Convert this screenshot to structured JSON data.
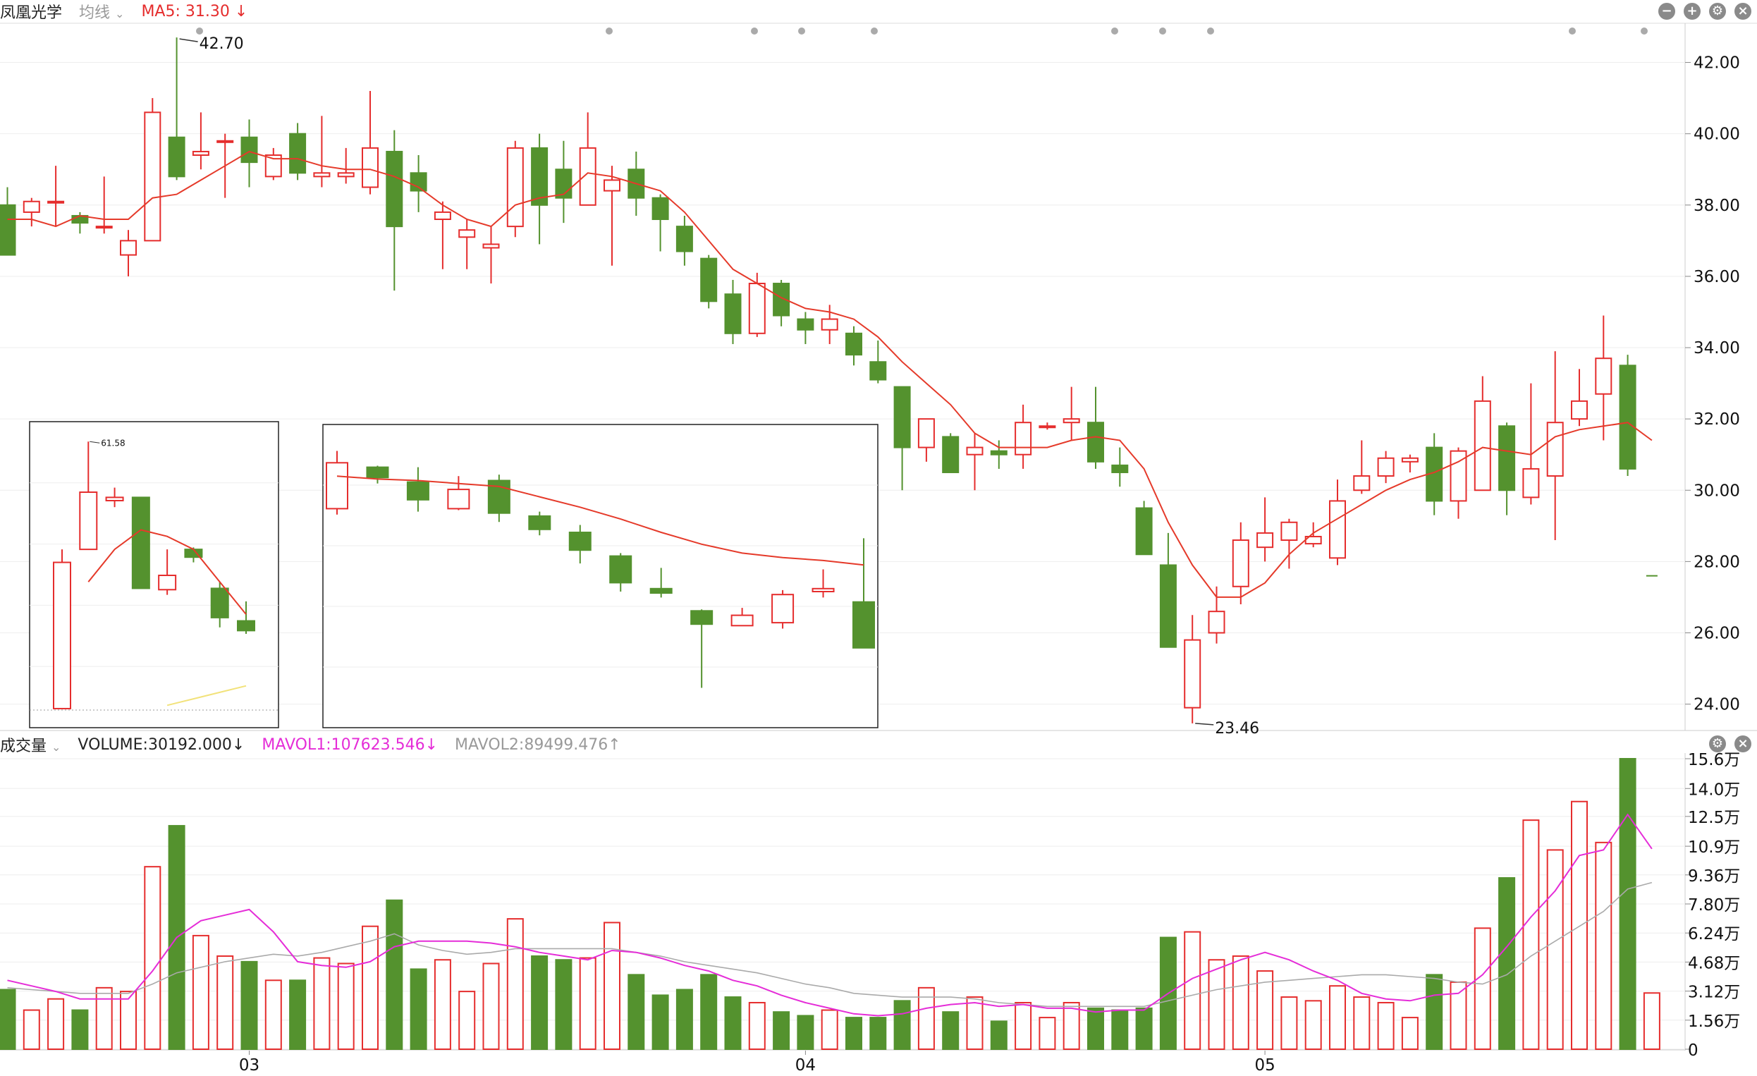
{
  "header": {
    "stock_name": "凤凰光学",
    "indicator": "均线",
    "ma5": "MA5: 31.30 ↓"
  },
  "volume_header": {
    "title": "成交量",
    "volume": "VOLUME:30192.000↓",
    "mavol1": "MAVOL1:107623.546↓",
    "mavol2": "MAVOL2:89499.476↑"
  },
  "colors": {
    "up": "#e52d2d",
    "down": "#54922e",
    "ma5": "#e53a2a",
    "mavol1": "#e52dd8",
    "mavol2": "#aaaaaa"
  },
  "icons": [
    "minus-circle-icon",
    "plus-circle-icon",
    "gear-icon",
    "close-icon"
  ],
  "chart_data": [
    {
      "type": "candlestick",
      "ylim": [
        23.3,
        43.0
      ],
      "y_ticks": [
        "42.00",
        "40.00",
        "38.00",
        "36.00",
        "34.00",
        "32.00",
        "30.00",
        "28.00",
        "26.00",
        "24.00"
      ],
      "x_ticks": [
        "03",
        "04",
        "05"
      ],
      "x_tick_index": [
        10,
        33,
        52
      ],
      "annotations": [
        {
          "text": "42.70",
          "index": 7,
          "value": 42.7
        },
        {
          "text": "23.46",
          "index": 49,
          "value": 23.46
        }
      ],
      "ma5_label": "MA5",
      "ohlc": [
        [
          38.0,
          36.6,
          38.5,
          36.6
        ],
        [
          37.8,
          38.1,
          38.2,
          37.4
        ],
        [
          38.1,
          38.1,
          39.1,
          37.4
        ],
        [
          37.7,
          37.5,
          37.8,
          37.2
        ],
        [
          37.4,
          37.4,
          38.8,
          37.2
        ],
        [
          36.6,
          37.0,
          37.3,
          36.0
        ],
        [
          37.0,
          40.6,
          41.0,
          37.0
        ],
        [
          39.9,
          38.8,
          42.7,
          38.7
        ],
        [
          39.4,
          39.5,
          40.6,
          39.0
        ],
        [
          39.8,
          39.8,
          40.0,
          38.2
        ],
        [
          39.9,
          39.2,
          40.4,
          38.5
        ],
        [
          38.8,
          39.4,
          39.6,
          38.7
        ],
        [
          40.0,
          38.9,
          40.3,
          38.7
        ],
        [
          38.8,
          38.9,
          40.5,
          38.5
        ],
        [
          38.8,
          38.9,
          39.6,
          38.6
        ],
        [
          38.5,
          39.6,
          41.2,
          38.3
        ],
        [
          39.5,
          37.4,
          40.1,
          35.6
        ],
        [
          38.9,
          38.4,
          39.4,
          37.8
        ],
        [
          37.6,
          37.8,
          38.1,
          36.2
        ],
        [
          37.1,
          37.3,
          37.6,
          36.2
        ],
        [
          36.8,
          36.9,
          37.4,
          35.8
        ],
        [
          37.4,
          39.6,
          39.8,
          37.1
        ],
        [
          39.6,
          38.0,
          40.0,
          36.9
        ],
        [
          39.0,
          38.2,
          39.8,
          37.5
        ],
        [
          38.0,
          39.6,
          40.6,
          38.0
        ],
        [
          38.4,
          38.7,
          39.1,
          36.3
        ],
        [
          39.0,
          38.2,
          39.5,
          37.7
        ],
        [
          38.2,
          37.6,
          38.3,
          36.7
        ],
        [
          37.4,
          36.7,
          37.7,
          36.3
        ],
        [
          36.5,
          35.3,
          36.6,
          35.1
        ],
        [
          35.5,
          34.4,
          35.9,
          34.1
        ],
        [
          34.4,
          35.8,
          36.1,
          34.3
        ],
        [
          35.8,
          34.9,
          35.9,
          34.6
        ],
        [
          34.8,
          34.5,
          35.0,
          34.1
        ],
        [
          34.5,
          34.8,
          35.2,
          34.1
        ],
        [
          34.4,
          33.8,
          34.6,
          33.5
        ],
        [
          33.6,
          33.1,
          34.2,
          33.0
        ],
        [
          32.9,
          31.2,
          32.9,
          30.0
        ],
        [
          31.2,
          32.0,
          32.0,
          30.8
        ],
        [
          31.5,
          30.5,
          31.6,
          30.5
        ],
        [
          31.0,
          31.2,
          31.6,
          30.0
        ],
        [
          31.1,
          31.0,
          31.4,
          30.6
        ],
        [
          31.0,
          31.9,
          32.4,
          30.6
        ],
        [
          31.8,
          31.8,
          31.9,
          31.7
        ],
        [
          31.9,
          32.0,
          32.9,
          31.4
        ],
        [
          31.9,
          30.8,
          32.9,
          30.6
        ],
        [
          30.7,
          30.5,
          31.2,
          30.1
        ],
        [
          29.5,
          28.2,
          29.7,
          28.2
        ],
        [
          27.9,
          25.6,
          28.8,
          25.6
        ],
        [
          23.9,
          25.8,
          26.5,
          23.46
        ],
        [
          26.0,
          26.6,
          27.3,
          25.7
        ],
        [
          27.3,
          28.6,
          29.1,
          26.8
        ],
        [
          28.4,
          28.8,
          29.8,
          28.0
        ],
        [
          28.6,
          29.1,
          29.2,
          27.8
        ],
        [
          28.5,
          28.7,
          29.1,
          28.4
        ],
        [
          28.1,
          29.7,
          30.3,
          27.9
        ],
        [
          30.0,
          30.4,
          31.4,
          29.9
        ],
        [
          30.4,
          30.9,
          31.1,
          30.2
        ],
        [
          30.8,
          30.9,
          31.0,
          30.5
        ],
        [
          31.2,
          29.7,
          31.6,
          29.3
        ],
        [
          29.7,
          31.1,
          31.2,
          29.2
        ],
        [
          30.0,
          32.5,
          33.2,
          30.0
        ],
        [
          31.8,
          30.0,
          31.9,
          29.3
        ],
        [
          29.8,
          30.6,
          33.0,
          29.6
        ],
        [
          30.4,
          31.9,
          33.9,
          28.6
        ],
        [
          32.0,
          32.5,
          33.4,
          31.8
        ],
        [
          32.7,
          33.7,
          34.9,
          31.4
        ],
        [
          33.5,
          30.6,
          33.8,
          30.4
        ],
        [
          27.6,
          27.6,
          27.6,
          27.6
        ]
      ],
      "ma5": [
        37.6,
        37.6,
        37.4,
        37.7,
        37.6,
        37.6,
        38.2,
        38.3,
        38.7,
        39.1,
        39.5,
        39.3,
        39.3,
        39.1,
        39.0,
        39.0,
        38.8,
        38.5,
        38.0,
        37.6,
        37.4,
        38.0,
        38.2,
        38.3,
        38.9,
        38.8,
        38.6,
        38.4,
        37.8,
        37.0,
        36.2,
        35.8,
        35.4,
        35.1,
        35.0,
        34.8,
        34.3,
        33.6,
        33.0,
        32.4,
        31.6,
        31.2,
        31.2,
        31.2,
        31.4,
        31.5,
        31.4,
        30.6,
        29.1,
        27.9,
        27.0,
        27.0,
        27.4,
        28.2,
        28.8,
        29.2,
        29.6,
        30.0,
        30.3,
        30.5,
        30.8,
        31.2,
        31.1,
        31.0,
        31.5,
        31.7,
        31.8,
        31.9,
        31.4
      ],
      "inset_left": {
        "annotation": "61.58",
        "ohlc": [
          [
            20.5,
            43.0,
            45.0,
            20.5
          ],
          [
            45.0,
            53.8,
            61.58,
            52.0
          ],
          [
            52.5,
            53.0,
            54.5,
            51.5
          ],
          [
            53.0,
            39.0,
            53.0,
            39.0
          ],
          [
            38.8,
            41.0,
            45.0,
            38.0
          ],
          [
            45.0,
            43.8,
            45.3,
            43.0
          ],
          [
            39.0,
            34.5,
            40.0,
            33.0
          ],
          [
            34.0,
            32.5,
            37.0,
            32.0
          ]
        ],
        "ma5": [
          null,
          40.0,
          45.0,
          48.0,
          47.0,
          45.0,
          40.0,
          35.0
        ],
        "ma_yellow": [
          null,
          null,
          null,
          null,
          21.0,
          22.0,
          23.0,
          24.0
        ]
      },
      "inset_middle": {
        "ohlc": [
          [
            36.6,
            39.7,
            40.5,
            36.2
          ],
          [
            39.4,
            38.7,
            39.5,
            38.3
          ],
          [
            38.4,
            37.2,
            39.4,
            36.4
          ],
          [
            36.6,
            37.9,
            38.8,
            36.5
          ],
          [
            38.5,
            36.3,
            38.9,
            35.7
          ],
          [
            36.1,
            35.2,
            36.4,
            34.8
          ],
          [
            35.0,
            33.8,
            35.5,
            32.9
          ],
          [
            33.4,
            31.6,
            33.6,
            31.0
          ],
          [
            31.2,
            30.9,
            32.6,
            30.6
          ],
          [
            29.7,
            28.8,
            29.8,
            24.5
          ],
          [
            28.7,
            29.4,
            29.9,
            28.8
          ],
          [
            28.9,
            30.8,
            31.1,
            28.5
          ],
          [
            31.0,
            31.2,
            32.5,
            30.6
          ],
          [
            30.3,
            27.2,
            34.6,
            27.2
          ]
        ],
        "ma5": [
          38.8,
          38.6,
          38.5,
          38.3,
          38.1,
          37.4,
          36.7,
          35.9,
          35.0,
          34.2,
          33.6,
          33.3,
          33.1,
          32.8
        ]
      }
    },
    {
      "type": "bar",
      "title": "成交量",
      "ylim": [
        0,
        156000
      ],
      "y_ticks": [
        "15.6万",
        "14.0万",
        "12.5万",
        "10.9万",
        "9.36万",
        "7.80万",
        "6.24万",
        "4.68万",
        "3.12万",
        "1.56万",
        "0"
      ],
      "volume": [
        32000,
        21000,
        27000,
        21000,
        33000,
        31000,
        98000,
        120000,
        61000,
        50000,
        47000,
        37000,
        37000,
        49000,
        46000,
        66000,
        80000,
        43000,
        48000,
        31000,
        46000,
        70000,
        50000,
        48000,
        49000,
        68000,
        40000,
        29000,
        32000,
        40000,
        28000,
        25000,
        20000,
        18000,
        21000,
        17000,
        17000,
        26000,
        33000,
        20000,
        28000,
        15000,
        25000,
        17000,
        25000,
        22000,
        21000,
        22000,
        60000,
        63000,
        48000,
        50000,
        42000,
        28000,
        26000,
        34000,
        28000,
        25000,
        17000,
        40000,
        36000,
        65000,
        92000,
        123000,
        107000,
        133000,
        111000,
        156000,
        30192
      ],
      "mavol1": [
        37000,
        34000,
        31000,
        27000,
        27000,
        27000,
        42000,
        60000,
        69000,
        72000,
        75000,
        63000,
        47000,
        45000,
        44000,
        47000,
        55000,
        58000,
        58000,
        58000,
        57000,
        55000,
        52000,
        50000,
        48000,
        53000,
        52000,
        49000,
        45000,
        42000,
        37000,
        34000,
        29000,
        25000,
        22000,
        19000,
        18000,
        19000,
        22000,
        24000,
        25000,
        23000,
        24000,
        22000,
        22000,
        20000,
        21000,
        21000,
        30000,
        38000,
        43000,
        48000,
        52000,
        48000,
        42000,
        37000,
        30000,
        27000,
        26000,
        29000,
        30000,
        40000,
        55000,
        71000,
        85000,
        104000,
        107000,
        126000,
        107623
      ],
      "mavol2": [
        33000,
        32000,
        31000,
        30000,
        30000,
        30000,
        35000,
        41000,
        44000,
        47000,
        49000,
        51000,
        50000,
        52000,
        55000,
        58000,
        62000,
        56000,
        53000,
        51000,
        52000,
        54000,
        54000,
        54000,
        54000,
        54000,
        52000,
        50000,
        47000,
        45000,
        43000,
        41000,
        38000,
        35000,
        33000,
        30000,
        29000,
        28000,
        28000,
        28000,
        27000,
        25000,
        24000,
        23000,
        23000,
        23000,
        23000,
        23000,
        26000,
        29000,
        32000,
        34000,
        36000,
        37000,
        38000,
        39000,
        40000,
        40000,
        39000,
        38000,
        36000,
        35000,
        40000,
        50000,
        58000,
        66000,
        74000,
        86000,
        89499
      ]
    }
  ]
}
